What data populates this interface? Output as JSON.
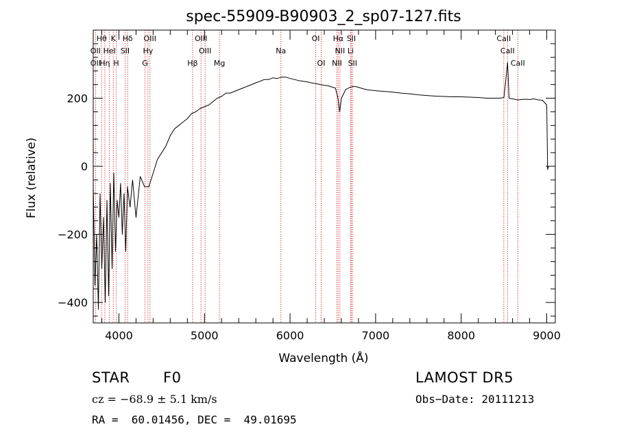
{
  "chart_data": {
    "type": "line",
    "title": "spec-55909-B90903_2_sp07-127.fits",
    "xlabel": "Wavelength (Å)",
    "ylabel": "Flux (relative)",
    "xlim": [
      3700,
      9100
    ],
    "ylim": [
      -460,
      400
    ],
    "xticks": [
      4000,
      5000,
      6000,
      7000,
      8000,
      9000
    ],
    "yticks": [
      -400,
      -200,
      0,
      200
    ],
    "grid": false,
    "line_color": "#000000",
    "marker_line_color": "#cc2020",
    "series": [
      {
        "x": [
          3700,
          3720,
          3740,
          3760,
          3780,
          3800,
          3820,
          3840,
          3860,
          3880,
          3900,
          3920,
          3940,
          3960,
          3980,
          4000,
          4020,
          4040,
          4060,
          4080,
          4100,
          4130,
          4160,
          4200,
          4250,
          4300,
          4350,
          4400,
          4450,
          4500,
          4550,
          4600,
          4650,
          4700,
          4750,
          4800,
          4850,
          4900,
          4950,
          5000,
          5050,
          5100,
          5150,
          5200,
          5250,
          5300,
          5350,
          5400,
          5450,
          5500,
          5550,
          5600,
          5650,
          5700,
          5750,
          5800,
          5850,
          5900,
          5950,
          6000,
          6050,
          6100,
          6150,
          6200,
          6250,
          6300,
          6350,
          6400,
          6450,
          6500,
          6530,
          6560,
          6580,
          6600,
          6650,
          6700,
          6750,
          6800,
          6850,
          6900,
          7000,
          7100,
          7200,
          7300,
          7400,
          7500,
          7600,
          7700,
          7800,
          7900,
          8000,
          8100,
          8200,
          8300,
          8400,
          8450,
          8500,
          8542,
          8560,
          8600,
          8662,
          8700,
          8750,
          8800,
          8850,
          8900,
          8950,
          9000,
          9010,
          9020
        ],
        "y": [
          -50,
          -350,
          -200,
          -420,
          -80,
          -300,
          -150,
          -400,
          -100,
          -380,
          -50,
          -300,
          -20,
          -250,
          -100,
          -150,
          -50,
          -200,
          -80,
          -250,
          -60,
          -120,
          -40,
          -150,
          -30,
          -60,
          -60,
          -20,
          20,
          40,
          60,
          90,
          110,
          120,
          130,
          140,
          155,
          160,
          170,
          175,
          180,
          190,
          200,
          205,
          215,
          215,
          220,
          225,
          230,
          235,
          240,
          245,
          250,
          255,
          255,
          260,
          258,
          262,
          262,
          258,
          255,
          252,
          250,
          248,
          245,
          243,
          240,
          238,
          236,
          232,
          230,
          200,
          160,
          200,
          225,
          232,
          235,
          232,
          228,
          225,
          222,
          220,
          218,
          215,
          213,
          210,
          208,
          206,
          205,
          204,
          204,
          203,
          202,
          200,
          200,
          200,
          202,
          305,
          200,
          198,
          195,
          196,
          197,
          196,
          198,
          195,
          194,
          180,
          -10,
          0
        ]
      }
    ],
    "line_markers": [
      {
        "label": "Hθ",
        "x": 3798,
        "row": 0
      },
      {
        "label": "K",
        "x": 3934,
        "row": 0
      },
      {
        "label": "Hδ",
        "x": 4102,
        "row": 0
      },
      {
        "label": "OIII",
        "x": 4363,
        "row": 0
      },
      {
        "label": "OIII",
        "x": 4959,
        "row": 0
      },
      {
        "label": "OI",
        "x": 6300,
        "row": 0
      },
      {
        "label": "Hα",
        "x": 6563,
        "row": 0
      },
      {
        "label": "SII",
        "x": 6716,
        "row": 0
      },
      {
        "label": "CaII",
        "x": 8498,
        "row": 0
      },
      {
        "label": "OII",
        "x": 3727,
        "row": 1
      },
      {
        "label": "HeI",
        "x": 3889,
        "row": 1
      },
      {
        "label": "SII",
        "x": 4072,
        "row": 1
      },
      {
        "label": "Hγ",
        "x": 4340,
        "row": 1
      },
      {
        "label": "OIII",
        "x": 5007,
        "row": 1
      },
      {
        "label": "Na",
        "x": 5893,
        "row": 1
      },
      {
        "label": "NII",
        "x": 6583,
        "row": 1
      },
      {
        "label": "Li",
        "x": 6708,
        "row": 1
      },
      {
        "label": "CaII",
        "x": 8542,
        "row": 1
      },
      {
        "label": "OII",
        "x": 3727,
        "row": 2
      },
      {
        "label": "Hη",
        "x": 3835,
        "row": 2
      },
      {
        "label": "H",
        "x": 3969,
        "row": 2
      },
      {
        "label": "G",
        "x": 4305,
        "row": 2
      },
      {
        "label": "Hβ",
        "x": 4861,
        "row": 2
      },
      {
        "label": "Mg",
        "x": 5175,
        "row": 2
      },
      {
        "label": "OI",
        "x": 6364,
        "row": 2
      },
      {
        "label": "NII",
        "x": 6548,
        "row": 2
      },
      {
        "label": "SII",
        "x": 6731,
        "row": 2
      },
      {
        "label": "CaII",
        "x": 8662,
        "row": 2
      }
    ]
  },
  "info": {
    "class": "STAR",
    "subclass": "F0",
    "survey": "LAMOST DR5",
    "cz": "cz = −68.9 ± 5.1 km/s",
    "obs_date": "Obs−Date: 20111213",
    "coords": "RA =  60.01456, DEC =  49.01695"
  }
}
